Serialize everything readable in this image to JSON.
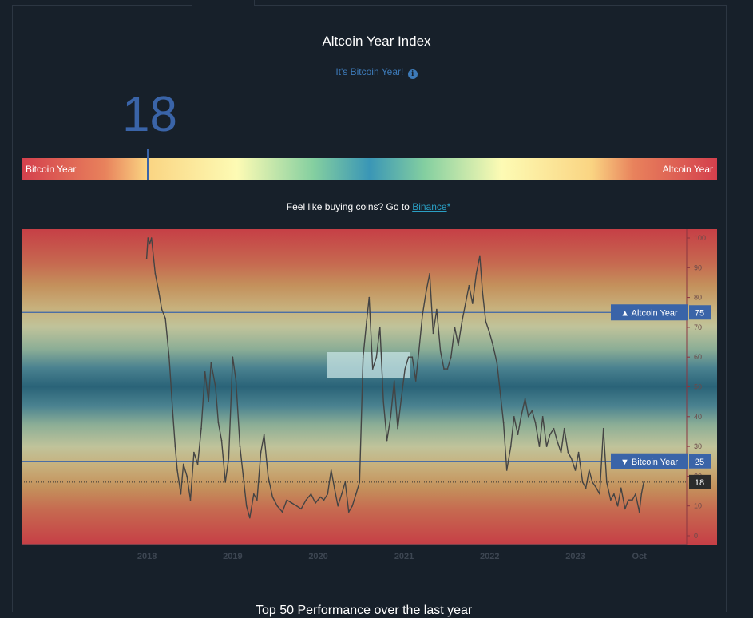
{
  "page": {
    "title": "Altcoin Year Index",
    "subtitle": "It's Bitcoin Year!",
    "current_value": "18",
    "gauge": {
      "left_label": "Bitcoin Year",
      "right_label": "Altcoin Year",
      "value": 18
    },
    "promo": {
      "prefix": "Feel like buying coins? Go to ",
      "link": "Binance",
      "suffix": "*"
    },
    "bottom_text": "Top 50 Performance over the last year"
  },
  "chart_data": {
    "type": "line",
    "title": "",
    "xlabel": "",
    "ylabel": "",
    "ylim": [
      0,
      100
    ],
    "yticks": [
      0,
      10,
      20,
      30,
      40,
      50,
      60,
      70,
      80,
      90,
      100
    ],
    "x_tick_labels": [
      "2018",
      "2019",
      "2020",
      "2021",
      "2022",
      "2023",
      "Oct"
    ],
    "x_tick_dates": [
      "2018-01-01",
      "2019-01-01",
      "2020-01-01",
      "2021-01-01",
      "2022-01-01",
      "2023-01-01",
      "2023-10-01"
    ],
    "x_range": [
      "2016-07-15",
      "2024-04-20"
    ],
    "reference_lines": [
      {
        "label": "▲ Altcoin Year",
        "value": 75,
        "value_label": "75",
        "color": "#3a64a8"
      },
      {
        "label": "▼ Bitcoin Year",
        "value": 25,
        "value_label": "25",
        "color": "#3a64a8"
      }
    ],
    "current_marker": {
      "value": 18,
      "label": "18",
      "style": "dotted"
    },
    "series": [
      {
        "color": "#444444",
        "x": [
          "2017-12-30",
          "2018-01-05",
          "2018-01-12",
          "2018-01-20",
          "2018-02-05",
          "2018-02-20",
          "2018-03-05",
          "2018-03-20",
          "2018-04-05",
          "2018-04-20",
          "2018-05-01",
          "2018-05-10",
          "2018-05-25",
          "2018-06-05",
          "2018-06-20",
          "2018-07-05",
          "2018-07-20",
          "2018-08-05",
          "2018-08-20",
          "2018-09-05",
          "2018-09-20",
          "2018-10-01",
          "2018-10-20",
          "2018-11-01",
          "2018-11-15",
          "2018-12-01",
          "2018-12-15",
          "2019-01-01",
          "2019-01-15",
          "2019-02-01",
          "2019-02-15",
          "2019-03-01",
          "2019-03-15",
          "2019-04-01",
          "2019-04-15",
          "2019-05-01",
          "2019-05-15",
          "2019-06-01",
          "2019-06-20",
          "2019-07-10",
          "2019-08-01",
          "2019-08-20",
          "2019-09-10",
          "2019-10-01",
          "2019-10-20",
          "2019-11-10",
          "2019-12-01",
          "2019-12-20",
          "2020-01-10",
          "2020-01-25",
          "2020-02-10",
          "2020-02-25",
          "2020-03-10",
          "2020-03-25",
          "2020-04-10",
          "2020-04-25",
          "2020-05-10",
          "2020-05-25",
          "2020-06-10",
          "2020-06-25",
          "2020-07-10",
          "2020-07-25",
          "2020-08-05",
          "2020-08-20",
          "2020-09-05",
          "2020-09-20",
          "2020-10-05",
          "2020-10-20",
          "2020-11-05",
          "2020-11-20",
          "2020-12-05",
          "2020-12-20",
          "2021-01-05",
          "2021-01-20",
          "2021-02-05",
          "2021-02-20",
          "2021-03-05",
          "2021-03-20",
          "2021-04-05",
          "2021-04-20",
          "2021-05-05",
          "2021-05-20",
          "2021-06-05",
          "2021-06-20",
          "2021-07-05",
          "2021-07-20",
          "2021-08-05",
          "2021-08-20",
          "2021-09-05",
          "2021-09-20",
          "2021-10-05",
          "2021-10-20",
          "2021-11-05",
          "2021-11-20",
          "2021-12-01",
          "2021-12-15",
          "2022-01-01",
          "2022-01-15",
          "2022-02-01",
          "2022-02-15",
          "2022-03-01",
          "2022-03-15",
          "2022-04-01",
          "2022-04-15",
          "2022-05-01",
          "2022-05-15",
          "2022-06-01",
          "2022-06-15",
          "2022-07-01",
          "2022-07-15",
          "2022-08-01",
          "2022-08-15",
          "2022-09-01",
          "2022-09-15",
          "2022-10-01",
          "2022-10-15",
          "2022-11-01",
          "2022-11-15",
          "2022-12-01",
          "2022-12-15",
          "2023-01-01",
          "2023-01-15",
          "2023-02-01",
          "2023-02-15",
          "2023-03-01",
          "2023-03-15",
          "2023-04-01",
          "2023-04-15",
          "2023-05-01",
          "2023-05-15",
          "2023-06-01",
          "2023-06-15",
          "2023-07-01",
          "2023-07-15",
          "2023-08-01",
          "2023-08-15",
          "2023-09-01",
          "2023-09-15",
          "2023-10-01",
          "2023-10-10",
          "2023-10-20"
        ],
        "values": [
          93,
          100,
          98,
          100,
          88,
          82,
          76,
          73,
          60,
          42,
          30,
          22,
          14,
          24,
          20,
          12,
          28,
          24,
          36,
          55,
          45,
          58,
          50,
          38,
          32,
          18,
          26,
          60,
          52,
          30,
          20,
          10,
          6,
          14,
          12,
          28,
          34,
          20,
          13,
          10,
          8,
          12,
          11,
          10,
          9,
          12,
          14,
          11,
          13,
          12,
          14,
          22,
          16,
          10,
          14,
          18,
          8,
          10,
          14,
          18,
          60,
          72,
          80,
          56,
          60,
          70,
          45,
          32,
          40,
          52,
          36,
          46,
          56,
          60,
          60,
          52,
          62,
          74,
          82,
          88,
          68,
          76,
          62,
          56,
          56,
          60,
          70,
          64,
          72,
          78,
          84,
          78,
          88,
          94,
          82,
          72,
          68,
          64,
          58,
          48,
          38,
          22,
          30,
          40,
          34,
          40,
          46,
          40,
          42,
          38,
          30,
          40,
          30,
          34,
          36,
          32,
          28,
          36,
          28,
          26,
          22,
          28,
          18,
          16,
          22,
          18,
          16,
          14,
          36,
          18,
          12,
          14,
          10,
          16,
          9,
          12,
          12,
          14,
          8,
          14,
          18
        ]
      }
    ]
  }
}
